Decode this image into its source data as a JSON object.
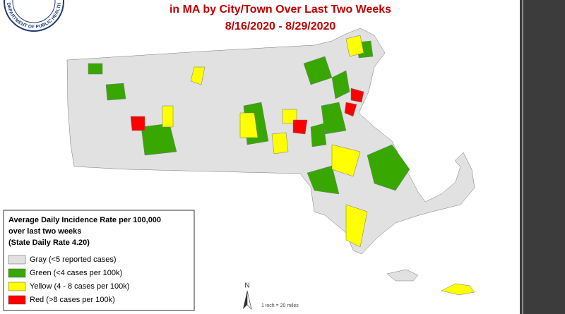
{
  "header": {
    "logo_text": "DEPARTMENT OF PUBLIC HEALTH",
    "title": "in MA by City/Town Over Last Two Weeks",
    "date_range": "8/16/2020 - 8/29/2020"
  },
  "legend": {
    "title_lines": [
      "Average Daily Incidence Rate per 100,000",
      "over last two weeks",
      "(State Daily Rate 4.20)"
    ],
    "items": [
      {
        "label": "Gray (<5 reported cases)",
        "color": "#e1e1e1"
      },
      {
        "label": "Green (<4 cases per 100k)",
        "color": "#38a800"
      },
      {
        "label": "Yellow (4 - 8 cases per 100k)",
        "color": "#ffff00"
      },
      {
        "label": "Red (>8 cases per 100k)",
        "color": "#ff0000"
      }
    ]
  },
  "north_label": "N",
  "scale_text": "1 inch = 20 miles"
}
